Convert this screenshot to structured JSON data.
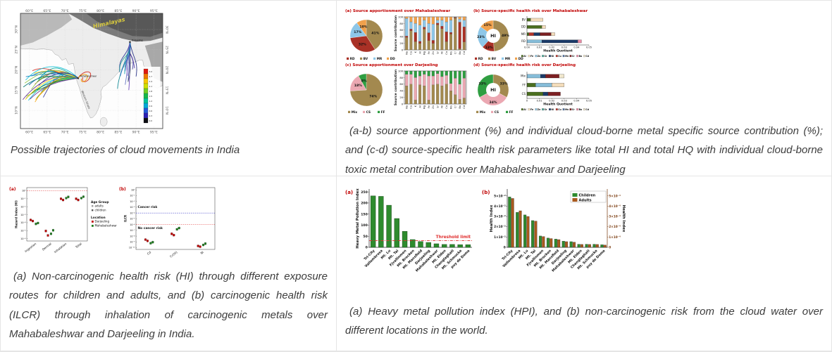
{
  "captions": {
    "map": "Possible trajectories of cloud movements in India",
    "source": "(a-b) source apportionment (%) and individual cloud-borne metal specific source contribution (%); and (c-d) source-specific health risk parameters like total HI and total HQ with individual cloud-borne toxic metal contribution over Mahabaleshwar and Darjeeling",
    "risk": "(a) Non-carcinogenic health risk (HI) through different exposure routes for children and adults, and (b) carcinogenic health risk (ILCR) through inhalation of carcinogenic metals over Mahabaleshwar and Darjeeling in India.",
    "hpi": "(a) Heavy metal pollution index (HPI), and (b) non-carcinogenic risk from the cloud water over different locations in the world."
  },
  "map_figure": {
    "lon_ticks": [
      "60°E",
      "65°E",
      "70°E",
      "75°E",
      "80°E",
      "85°E",
      "90°E",
      "95°E"
    ],
    "lon_values": [
      60,
      65,
      70,
      75,
      80,
      85,
      90,
      95
    ],
    "lat_ticks": [
      "30°N",
      "25°N",
      "20°N",
      "15°N",
      "10°N"
    ],
    "lat_values": [
      30,
      25,
      20,
      15,
      10
    ],
    "region_label": "Himalayas",
    "coast_label": "Western Ghats",
    "sites": [
      {
        "name": "Mahabaleshwar",
        "lon": 73.7,
        "lat": 18.0
      },
      {
        "name": "Darjeeling",
        "lon": 88.3,
        "lat": 26.9
      }
    ],
    "colorbar_values": [
      "3.0",
      "2.7",
      "2.4",
      "2.1",
      "1.8",
      "1.5",
      "1.2",
      "0.9",
      "0.6",
      "0.3",
      "0.0"
    ],
    "colorbar_colors": [
      "#e01b10",
      "#f07800",
      "#f5c800",
      "#cfe000",
      "#6fce26",
      "#14b84a",
      "#00c29a",
      "#00a8d8",
      "#2458d8",
      "#2b1fb4",
      "#0d0d12"
    ]
  },
  "source_colors": {
    "RD": "#a93126",
    "BV": "#a3894f",
    "MR": "#8ec7e8",
    "DD": "#f0a14c",
    "Mix": "#a3894f",
    "CS": "#eba8b2",
    "FF": "#2f9e41"
  },
  "metal_colors": {
    "Al": "#4a6e1f",
    "Fe": "#f3dcba",
    "Zn": "#85bcd8",
    "Sr": "#3fa08f",
    "Ni": "#1b3a68",
    "Cu": "#b5342a",
    "Mn": "#4f6f9e",
    "Cr": "#7c2022",
    "Ba": "#e88aa4",
    "Cd": "#f0e6cc"
  },
  "chart_data": [
    {
      "id": "src_a",
      "type": "pie",
      "title": "(a)  Source apportionment over Mahabaleshwar",
      "slices": [
        [
          "BV",
          41
        ],
        [
          "RD",
          32
        ],
        [
          "MR",
          17
        ],
        [
          "DD",
          10
        ]
      ],
      "legend": [
        "RD",
        "BV",
        "MR",
        "DD"
      ],
      "bars": {
        "ylabel": "Source contribution",
        "yticks": [
          0,
          20,
          40,
          60,
          80,
          100
        ],
        "categories": [
          "Na",
          "Ca",
          "K",
          "Al",
          "Mg",
          "Fe",
          "Zn",
          "Sr",
          "Ni",
          "Cu",
          "Mn",
          "Cr",
          "Ba",
          "Cd"
        ],
        "series": [
          [
            "BV",
            [
              38,
              58,
              25,
              20,
              63,
              28,
              20,
              76,
              64,
              25,
              48,
              96,
              4,
              24
            ]
          ],
          [
            "RD",
            [
              4,
              5,
              28,
              6,
              6,
              24,
              9,
              5,
              8,
              30,
              5,
              2,
              80,
              46
            ]
          ],
          [
            "MR",
            [
              53,
              22,
              27,
              49,
              21,
              28,
              49,
              9,
              18,
              30,
              37,
              1,
              9,
              20
            ]
          ],
          [
            "DD",
            [
              5,
              15,
              20,
              25,
              10,
              20,
              22,
              10,
              10,
              15,
              10,
              1,
              7,
              10
            ]
          ]
        ]
      }
    },
    {
      "id": "src_b",
      "type": "donut+hbar",
      "title": "(b)  Source-specific health risk over Mahabaleshwar",
      "donut": {
        "center": "HI",
        "slices": [
          [
            "BV",
            49
          ],
          [
            "RD",
            13
          ],
          [
            "MR",
            23
          ],
          [
            "DD",
            15
          ]
        ]
      },
      "legend": [
        "RD",
        "BV",
        "MR",
        "DD"
      ],
      "hbars": {
        "rows": [
          [
            "BV",
            [
              [
                "Al",
                0.003
              ],
              [
                "Fe",
                0.01
              ]
            ]
          ],
          [
            "DD",
            [
              [
                "Al",
                0.012
              ],
              [
                "Fe",
                0.003
              ]
            ]
          ],
          [
            "MR",
            [
              [
                "Al",
                0.0015
              ],
              [
                "Cu",
                0.004
              ],
              [
                "Ni",
                0.005
              ],
              [
                "Cr",
                0.009
              ],
              [
                "Fe",
                0.003
              ]
            ]
          ],
          [
            "RD",
            [
              [
                "Zn",
                0.012
              ],
              [
                "Ni",
                0.029
              ],
              [
                "Ba",
                0.003
              ]
            ]
          ]
        ],
        "xmax": 0.05,
        "xticks": [
          "0.00",
          "0.01",
          "0.02",
          "0.03",
          "0.04",
          "0.05"
        ],
        "xlabel": "Health Quotient",
        "metals": [
          "Al",
          "Fe",
          "Zn",
          "Sr",
          "Ni",
          "Cu",
          "Mn",
          "Cr",
          "Ba",
          "Cd"
        ]
      }
    },
    {
      "id": "src_c",
      "type": "pie",
      "title": "(c)  Source apportionment over Darjeeling",
      "slices": [
        [
          "Mix",
          74
        ],
        [
          "CS",
          18
        ],
        [
          "FF",
          8
        ]
      ],
      "legend": [
        "Mix",
        "CS",
        "FF"
      ],
      "bars": {
        "ylabel": "Source contribution",
        "yticks": [
          0,
          20,
          40,
          60,
          80,
          100
        ],
        "categories": [
          "Na",
          "Ca",
          "K",
          "Al",
          "Mg",
          "Fe",
          "Zn",
          "Sr",
          "Ni",
          "Cu",
          "Mn",
          "Cr",
          "Ba",
          "Cd"
        ],
        "series": [
          [
            "Mix",
            [
              55,
              60,
              12,
              58,
              55,
              12,
              58,
              60,
              55,
              60,
              40,
              28,
              14,
              18
            ]
          ],
          [
            "CS",
            [
              35,
              30,
              68,
              27,
              35,
              73,
              27,
              32,
              28,
              27,
              22,
              50,
              46,
              60
            ]
          ],
          [
            "FF",
            [
              10,
              10,
              20,
              15,
              10,
              15,
              15,
              8,
              17,
              13,
              38,
              22,
              40,
              22
            ]
          ]
        ]
      }
    },
    {
      "id": "src_d",
      "type": "donut+hbar",
      "title": "(d)  Source-specific health risk over Darjeeling",
      "donut": {
        "center": "HI",
        "slices": [
          [
            "Mix",
            33
          ],
          [
            "CS",
            34
          ],
          [
            "FF",
            33
          ]
        ]
      },
      "legend": [
        "Mix",
        "CS",
        "FF"
      ],
      "hbars": {
        "rows": [
          [
            "Mix",
            [
              [
                "Zn",
                0.011
              ],
              [
                "Ni",
                0.004
              ],
              [
                "Cr",
                0.011
              ],
              [
                "Cd",
                0.004
              ]
            ]
          ],
          [
            "FF",
            [
              [
                "Al",
                0.007
              ],
              [
                "Zn",
                0.013
              ],
              [
                "Fe",
                0.01
              ]
            ]
          ],
          [
            "CS",
            [
              [
                "Al",
                0.013
              ],
              [
                "Ni",
                0.004
              ],
              [
                "Cr",
                0.01
              ]
            ]
          ]
        ],
        "xmax": 0.05,
        "xticks": [
          "0",
          "0.01",
          "0.02",
          "0.03",
          "0.04",
          "0.05"
        ],
        "xlabel": "Health Quotient",
        "metals": [
          "Al",
          "Fe",
          "Zn",
          "Sr",
          "Ni",
          "Cu",
          "Mn",
          "Cr",
          "Ba",
          "Cd"
        ]
      }
    },
    {
      "id": "risk_a",
      "type": "log_scatter",
      "panel_label": "(a)",
      "ylabel": "Hazard Index (HI)",
      "ymax_exp": 0,
      "ymin_exp": -6,
      "categories": [
        "Ingestion",
        "Dermal",
        "Inhalation",
        "Total"
      ],
      "series": [
        {
          "name": "Darjeeling",
          "color": "#c00000",
          "points": [
            [
              0.00016,
              0.00022
            ],
            [
              2.5e-06,
              9e-06
            ],
            [
              0.07,
              0.1
            ],
            [
              0.07,
              0.1
            ]
          ]
        },
        {
          "name": "Mahabaleshwar",
          "color": "#1e7d1e",
          "points": [
            [
              7e-05,
              9e-05
            ],
            [
              4e-06,
              1.1e-05
            ],
            [
              0.12,
              0.17
            ],
            [
              0.12,
              0.18
            ]
          ]
        }
      ],
      "ref_lines": [
        {
          "exp": 0,
          "color": "#e03030"
        }
      ],
      "legend": {
        "age_title": "Age Group",
        "ages": [
          "adults",
          "children"
        ],
        "loc_title": "Location",
        "locations": [
          "Darjeeling",
          "Mahabaleshwar"
        ]
      }
    },
    {
      "id": "risk_b",
      "type": "log_scatter",
      "panel_label": "(b)",
      "ylabel": "ILCR",
      "ymax_exp": 0,
      "ymin_exp": -10,
      "categories": [
        "Cd",
        "Cr(VI)",
        "Ni"
      ],
      "series": [
        {
          "name": "Darjeeling",
          "color": "#c00000",
          "points": [
            [
              1.5e-09,
              2.5e-09
            ],
            [
              1.5e-08,
              2.5e-08
            ],
            [
              1.5e-10,
              2e-10
            ]
          ]
        },
        {
          "name": "Mahabaleshwar",
          "color": "#1e7d1e",
          "points": [
            [
              6e-10,
              9e-10
            ],
            [
              1.5e-07,
              2.5e-07
            ],
            [
              3e-10,
              5e-10
            ]
          ]
        }
      ],
      "ref_lines": [
        {
          "exp": -4,
          "color": "#4444cc"
        },
        {
          "exp": -6,
          "color": "#e03030"
        }
      ],
      "annotations": [
        {
          "text": "Cancer risk",
          "exp": -3.1
        },
        {
          "text": "No cancer risk",
          "exp": -6.8
        }
      ]
    },
    {
      "id": "hpi_a",
      "type": "bar",
      "panel_label": "(a)",
      "ylabel": "Heavy Metal Pollution Index",
      "yticks": [
        0,
        50,
        100,
        150,
        200,
        250
      ],
      "ymax": 260,
      "bar_color": "#2e8b2e",
      "categories": [
        "Tri-City",
        "Vallombrosa",
        "Mt. Lu",
        "Mt. Tai",
        "Fjvallinmen",
        "Mt. Brocken",
        "Mt. Mansfield",
        "Darjeeling",
        "Mahabaleshwar",
        "Mt. Elden",
        "Changlaghati",
        "Mt. Schmucke",
        "puy de Dome"
      ],
      "values": [
        232,
        230,
        190,
        130,
        72,
        35,
        26,
        22,
        16,
        13,
        13,
        12,
        12
      ],
      "threshold": {
        "value": 30,
        "label": "Threshold limit",
        "color": "#e03030"
      }
    },
    {
      "id": "hpi_b",
      "type": "grouped_bar",
      "panel_label": "(b)",
      "ylabel_left": "Health Index",
      "ylabel_right": "Health Index",
      "left_ticks": [
        "0",
        "1×10⁻²",
        "2×10⁻²",
        "3×10⁻²",
        "4×10⁻²",
        "5×10⁻²"
      ],
      "right_ticks": [
        "0",
        "1×10⁻⁴",
        "2×10⁻⁴",
        "3×10⁻⁴",
        "4×10⁻⁴",
        "5×10⁻⁴"
      ],
      "ymax": 5.6,
      "categories": [
        "Tri-City",
        "Vallombrosa",
        "Mt. Lu",
        "Mt. Tai",
        "Fjvallinmen",
        "Mt. Brocken",
        "Mt. Mansfield",
        "Darjeeling",
        "Mahabaleshwar",
        "Mt. Elden",
        "Changlaghati",
        "Mt. Schmucke",
        "puy de Dome"
      ],
      "series": [
        {
          "name": "Children",
          "color": "#2e8b2e",
          "values": [
            4.9,
            3.4,
            3.15,
            2.6,
            1.1,
            0.9,
            0.8,
            0.6,
            0.55,
            0.3,
            0.3,
            0.3,
            0.25
          ]
        },
        {
          "name": "Adults",
          "color": "#a9591d",
          "values": [
            4.75,
            3.55,
            3.0,
            2.55,
            1.05,
            0.85,
            0.75,
            0.55,
            0.5,
            0.28,
            0.28,
            0.28,
            0.22
          ]
        }
      ]
    }
  ]
}
